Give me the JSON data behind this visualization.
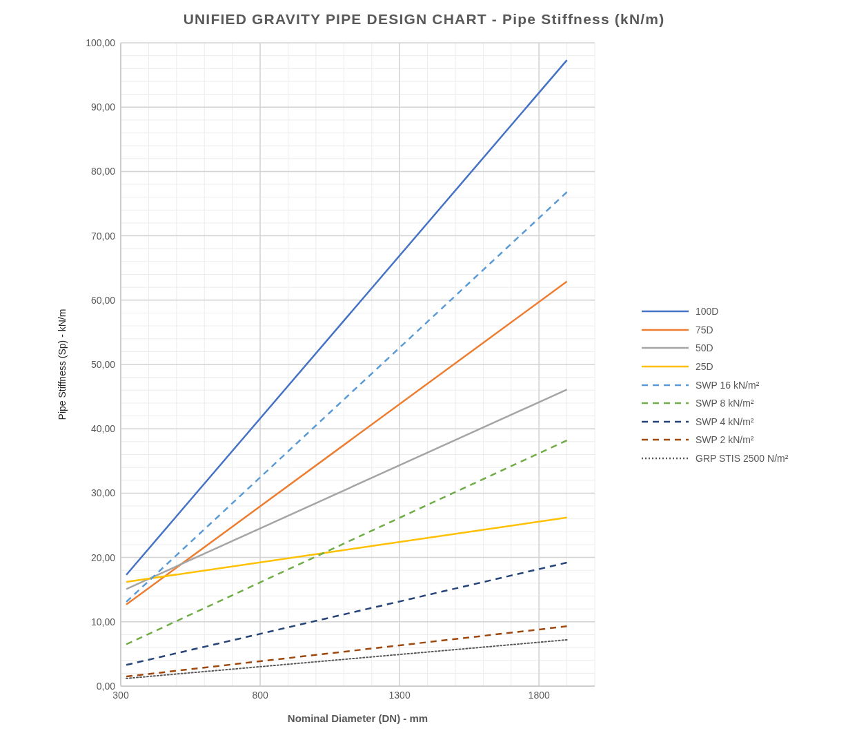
{
  "chart_data": {
    "type": "line",
    "title": "UNIFIED GRAVITY PIPE DESIGN CHART - Pipe Stiffness (kN/m)",
    "xlabel": "Nominal Diameter (DN) - mm",
    "ylabel": "Pipe Stiffness (Sp) - kN/m",
    "xlim": [
      300,
      2000
    ],
    "ylim": [
      0,
      100
    ],
    "xticks": [
      300,
      {
        "value": 400,
        "label": null
      },
      {
        "value": 500,
        "label": null
      },
      {
        "value": 600,
        "label": null
      },
      {
        "value": 700,
        "label": null
      },
      800,
      {
        "value": 900,
        "label": null
      },
      {
        "value": 1000,
        "label": null
      },
      {
        "value": 1100,
        "label": null
      },
      {
        "value": 1200,
        "label": null
      },
      1300,
      {
        "value": 1400,
        "label": null
      },
      {
        "value": 1500,
        "label": null
      },
      {
        "value": 1600,
        "label": null
      },
      {
        "value": 1700,
        "label": null
      },
      1800,
      {
        "value": 1900,
        "label": null
      },
      {
        "value": 2000,
        "label": null
      }
    ],
    "yticks": [
      {
        "value": 0,
        "label": "0,00"
      },
      {
        "value": 2,
        "label": null
      },
      {
        "value": 4,
        "label": null
      },
      {
        "value": 6,
        "label": null
      },
      {
        "value": 8,
        "label": null
      },
      {
        "value": 10,
        "label": "10,00"
      },
      {
        "value": 12,
        "label": null
      },
      {
        "value": 14,
        "label": null
      },
      {
        "value": 16,
        "label": null
      },
      {
        "value": 18,
        "label": null
      },
      {
        "value": 20,
        "label": "20,00"
      },
      {
        "value": 22,
        "label": null
      },
      {
        "value": 24,
        "label": null
      },
      {
        "value": 26,
        "label": null
      },
      {
        "value": 28,
        "label": null
      },
      {
        "value": 30,
        "label": "30,00"
      },
      {
        "value": 32,
        "label": null
      },
      {
        "value": 34,
        "label": null
      },
      {
        "value": 36,
        "label": null
      },
      {
        "value": 38,
        "label": null
      },
      {
        "value": 40,
        "label": "40,00"
      },
      {
        "value": 42,
        "label": null
      },
      {
        "value": 44,
        "label": null
      },
      {
        "value": 46,
        "label": null
      },
      {
        "value": 48,
        "label": null
      },
      {
        "value": 50,
        "label": "50,00"
      },
      {
        "value": 52,
        "label": null
      },
      {
        "value": 54,
        "label": null
      },
      {
        "value": 56,
        "label": null
      },
      {
        "value": 58,
        "label": null
      },
      {
        "value": 60,
        "label": "60,00"
      },
      {
        "value": 62,
        "label": null
      },
      {
        "value": 64,
        "label": null
      },
      {
        "value": 66,
        "label": null
      },
      {
        "value": 68,
        "label": null
      },
      {
        "value": 70,
        "label": "70,00"
      },
      {
        "value": 72,
        "label": null
      },
      {
        "value": 74,
        "label": null
      },
      {
        "value": 76,
        "label": null
      },
      {
        "value": 78,
        "label": null
      },
      {
        "value": 80,
        "label": "80,00"
      },
      {
        "value": 82,
        "label": null
      },
      {
        "value": 84,
        "label": null
      },
      {
        "value": 86,
        "label": null
      },
      {
        "value": 88,
        "label": null
      },
      {
        "value": 90,
        "label": "90,00"
      },
      {
        "value": 92,
        "label": null
      },
      {
        "value": 94,
        "label": null
      },
      {
        "value": 96,
        "label": null
      },
      {
        "value": 98,
        "label": null
      },
      {
        "value": 100,
        "label": "100,00"
      }
    ],
    "grid": true,
    "legend": "right",
    "marker": "none",
    "x": [
      320,
      1900
    ],
    "series": [
      {
        "name": "100D",
        "color": "#4472c4",
        "line_style": "solid",
        "values": [
          17.3,
          97.3
        ]
      },
      {
        "name": "75D",
        "color": "#ed7d31",
        "line_style": "solid",
        "values": [
          12.7,
          62.9
        ]
      },
      {
        "name": "50D",
        "color": "#a5a5a5",
        "line_style": "solid",
        "values": [
          15.1,
          46.1
        ]
      },
      {
        "name": "25D",
        "color": "#ffc000",
        "line_style": "solid",
        "values": [
          16.2,
          26.2
        ]
      },
      {
        "name": "SWP 16 kN/m²",
        "color": "#5b9bd5",
        "line_style": "dashed",
        "values": [
          13.1,
          76.8
        ]
      },
      {
        "name": "SWP 8 kN/m²",
        "color": "#70ad47",
        "line_style": "dashed",
        "values": [
          6.5,
          38.2
        ]
      },
      {
        "name": "SWP 4 kN/m²",
        "color": "#264478",
        "line_style": "dashed",
        "values": [
          3.3,
          19.2
        ]
      },
      {
        "name": "SWP 2 kN/m²",
        "color": "#9e480e",
        "line_style": "dashed",
        "values": [
          1.5,
          9.3
        ]
      },
      {
        "name": "GRP STIS 2500 N/m²",
        "color": "#595959",
        "line_style": "dotted",
        "values": [
          1.2,
          7.2
        ]
      }
    ]
  }
}
